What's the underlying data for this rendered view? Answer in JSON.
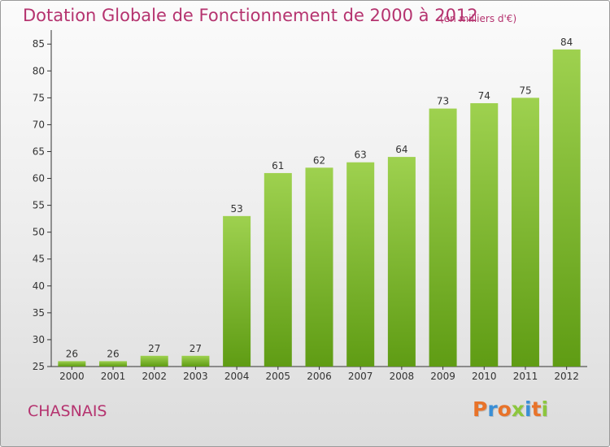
{
  "header": {
    "title": "Dotation Globale de Fonctionnement de 2000 à 2012",
    "subtitle": "(en milliers d'€)"
  },
  "footer": {
    "commune": "CHASNAIS",
    "logo": {
      "letters": [
        "P",
        "r",
        "o",
        "x",
        "i",
        "t",
        "i"
      ],
      "colors": [
        "#e8732a",
        "#3a8fd6",
        "#e8732a",
        "#8cc63e",
        "#3a8fd6",
        "#e8732a",
        "#8cc63e"
      ]
    }
  },
  "colors": {
    "title": "#b5336f",
    "bar_top": "#9ed14f",
    "bar_bottom": "#5f9c14",
    "axis": "#333333",
    "grid": "#d6d6d6"
  },
  "chart_data": {
    "type": "bar",
    "categories": [
      "2000",
      "2001",
      "2002",
      "2003",
      "2004",
      "2005",
      "2006",
      "2007",
      "2008",
      "2009",
      "2010",
      "2011",
      "2012"
    ],
    "values": [
      26,
      26,
      27,
      27,
      53,
      61,
      62,
      63,
      64,
      73,
      74,
      75,
      84
    ],
    "data_labels": [
      "26",
      "26",
      "27",
      "27",
      "53",
      "61",
      "62",
      "63",
      "64",
      "73",
      "74",
      "75",
      "84"
    ],
    "y_ticks": [
      25,
      30,
      35,
      40,
      45,
      50,
      55,
      60,
      65,
      70,
      75,
      80,
      85
    ],
    "ylim": [
      25,
      87
    ],
    "grid": false,
    "legend": "none"
  }
}
